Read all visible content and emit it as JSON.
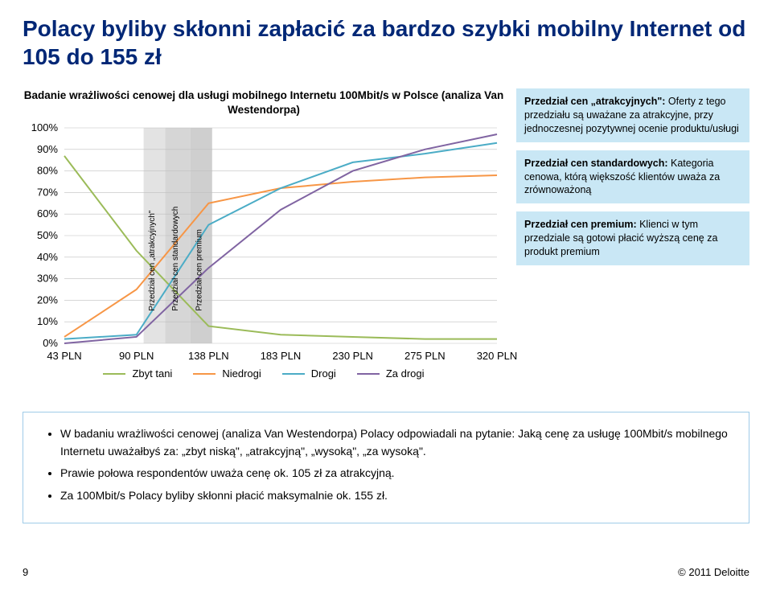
{
  "title": "Polacy byliby skłonni zapłacić za bardzo szybki mobilny Internet od 105 do 155 zł",
  "page_number": "9",
  "copyright": "© 2011 Deloitte",
  "chart": {
    "type": "line",
    "title": "Badanie wrażliwości cenowej dla usługi mobilnego Internetu 100Mbit/s w Polsce (analiza Van Westendorpa)",
    "background_color": "#ffffff",
    "grid_color": "#bfbfbf",
    "xlabels": [
      "43 PLN",
      "90 PLN",
      "138 PLN",
      "183 PLN",
      "230 PLN",
      "275 PLN",
      "320 PLN"
    ],
    "ylabels": [
      "0%",
      "10%",
      "20%",
      "30%",
      "40%",
      "50%",
      "60%",
      "70%",
      "80%",
      "90%",
      "100%"
    ],
    "ylim": [
      0,
      100
    ],
    "ytick_step": 10,
    "label_fontsize": 13,
    "title_fontsize": 13.5,
    "series": [
      {
        "name": "Zbyt tani",
        "color": "#9bbb59",
        "y": [
          87,
          43,
          8,
          4,
          3,
          2,
          2
        ]
      },
      {
        "name": "Niedrogi",
        "color": "#f79646",
        "y": [
          3,
          25,
          65,
          72,
          75,
          77,
          78
        ]
      },
      {
        "name": "Drogi",
        "color": "#4bacc6",
        "y": [
          2,
          4,
          55,
          72,
          84,
          88,
          93
        ]
      },
      {
        "name": "Za drogi",
        "color": "#8064a2",
        "y": [
          0,
          3,
          35,
          62,
          80,
          90,
          97
        ]
      }
    ],
    "bands": [
      {
        "label": "Przedział cen „atrakcyjnych\"",
        "x0_idx": 1.1,
        "x1_idx": 1.4,
        "fill": "#e3e3e3"
      },
      {
        "label": "Przedział cen standardowych",
        "x0_idx": 1.4,
        "x1_idx": 1.75,
        "fill": "#d6d6d6"
      },
      {
        "label": "Przedział cen premium",
        "x0_idx": 1.75,
        "x1_idx": 2.05,
        "fill": "#cfcfcf"
      }
    ],
    "band_label_fontsize": 10
  },
  "side": {
    "bg": "#c9e7f5",
    "boxes": [
      {
        "h": "Przedział cen „atrakcyjnych\":",
        "t": " Oferty z tego przedziału są uważane za atrakcyjne, przy jednoczesnej pozytywnej ocenie produktu/usługi"
      },
      {
        "h": "Przedział cen standardowych:",
        "t": " Kategoria cenowa, którą większość klientów uważa za zrównoważoną"
      },
      {
        "h": "Przedział cen premium:",
        "t": " Klienci w tym przedziale są gotowi płacić wyższą cenę za produkt premium"
      }
    ]
  },
  "summary": {
    "border_color": "#9fcbe8",
    "items": [
      "W badaniu wrażliwości cenowej (analiza Van Westendorpa) Polacy odpowiadali na pytanie: Jaką cenę za usługę 100Mbit/s mobilnego Internetu uważałbyś za: „zbyt niską\", „atrakcyjną\", „wysoką\", „za wysoką\".",
      "Prawie połowa respondentów uważa cenę ok. 105 zł za atrakcyjną.",
      "Za 100Mbit/s Polacy byliby skłonni płacić maksymalnie ok. 155 zł."
    ]
  }
}
